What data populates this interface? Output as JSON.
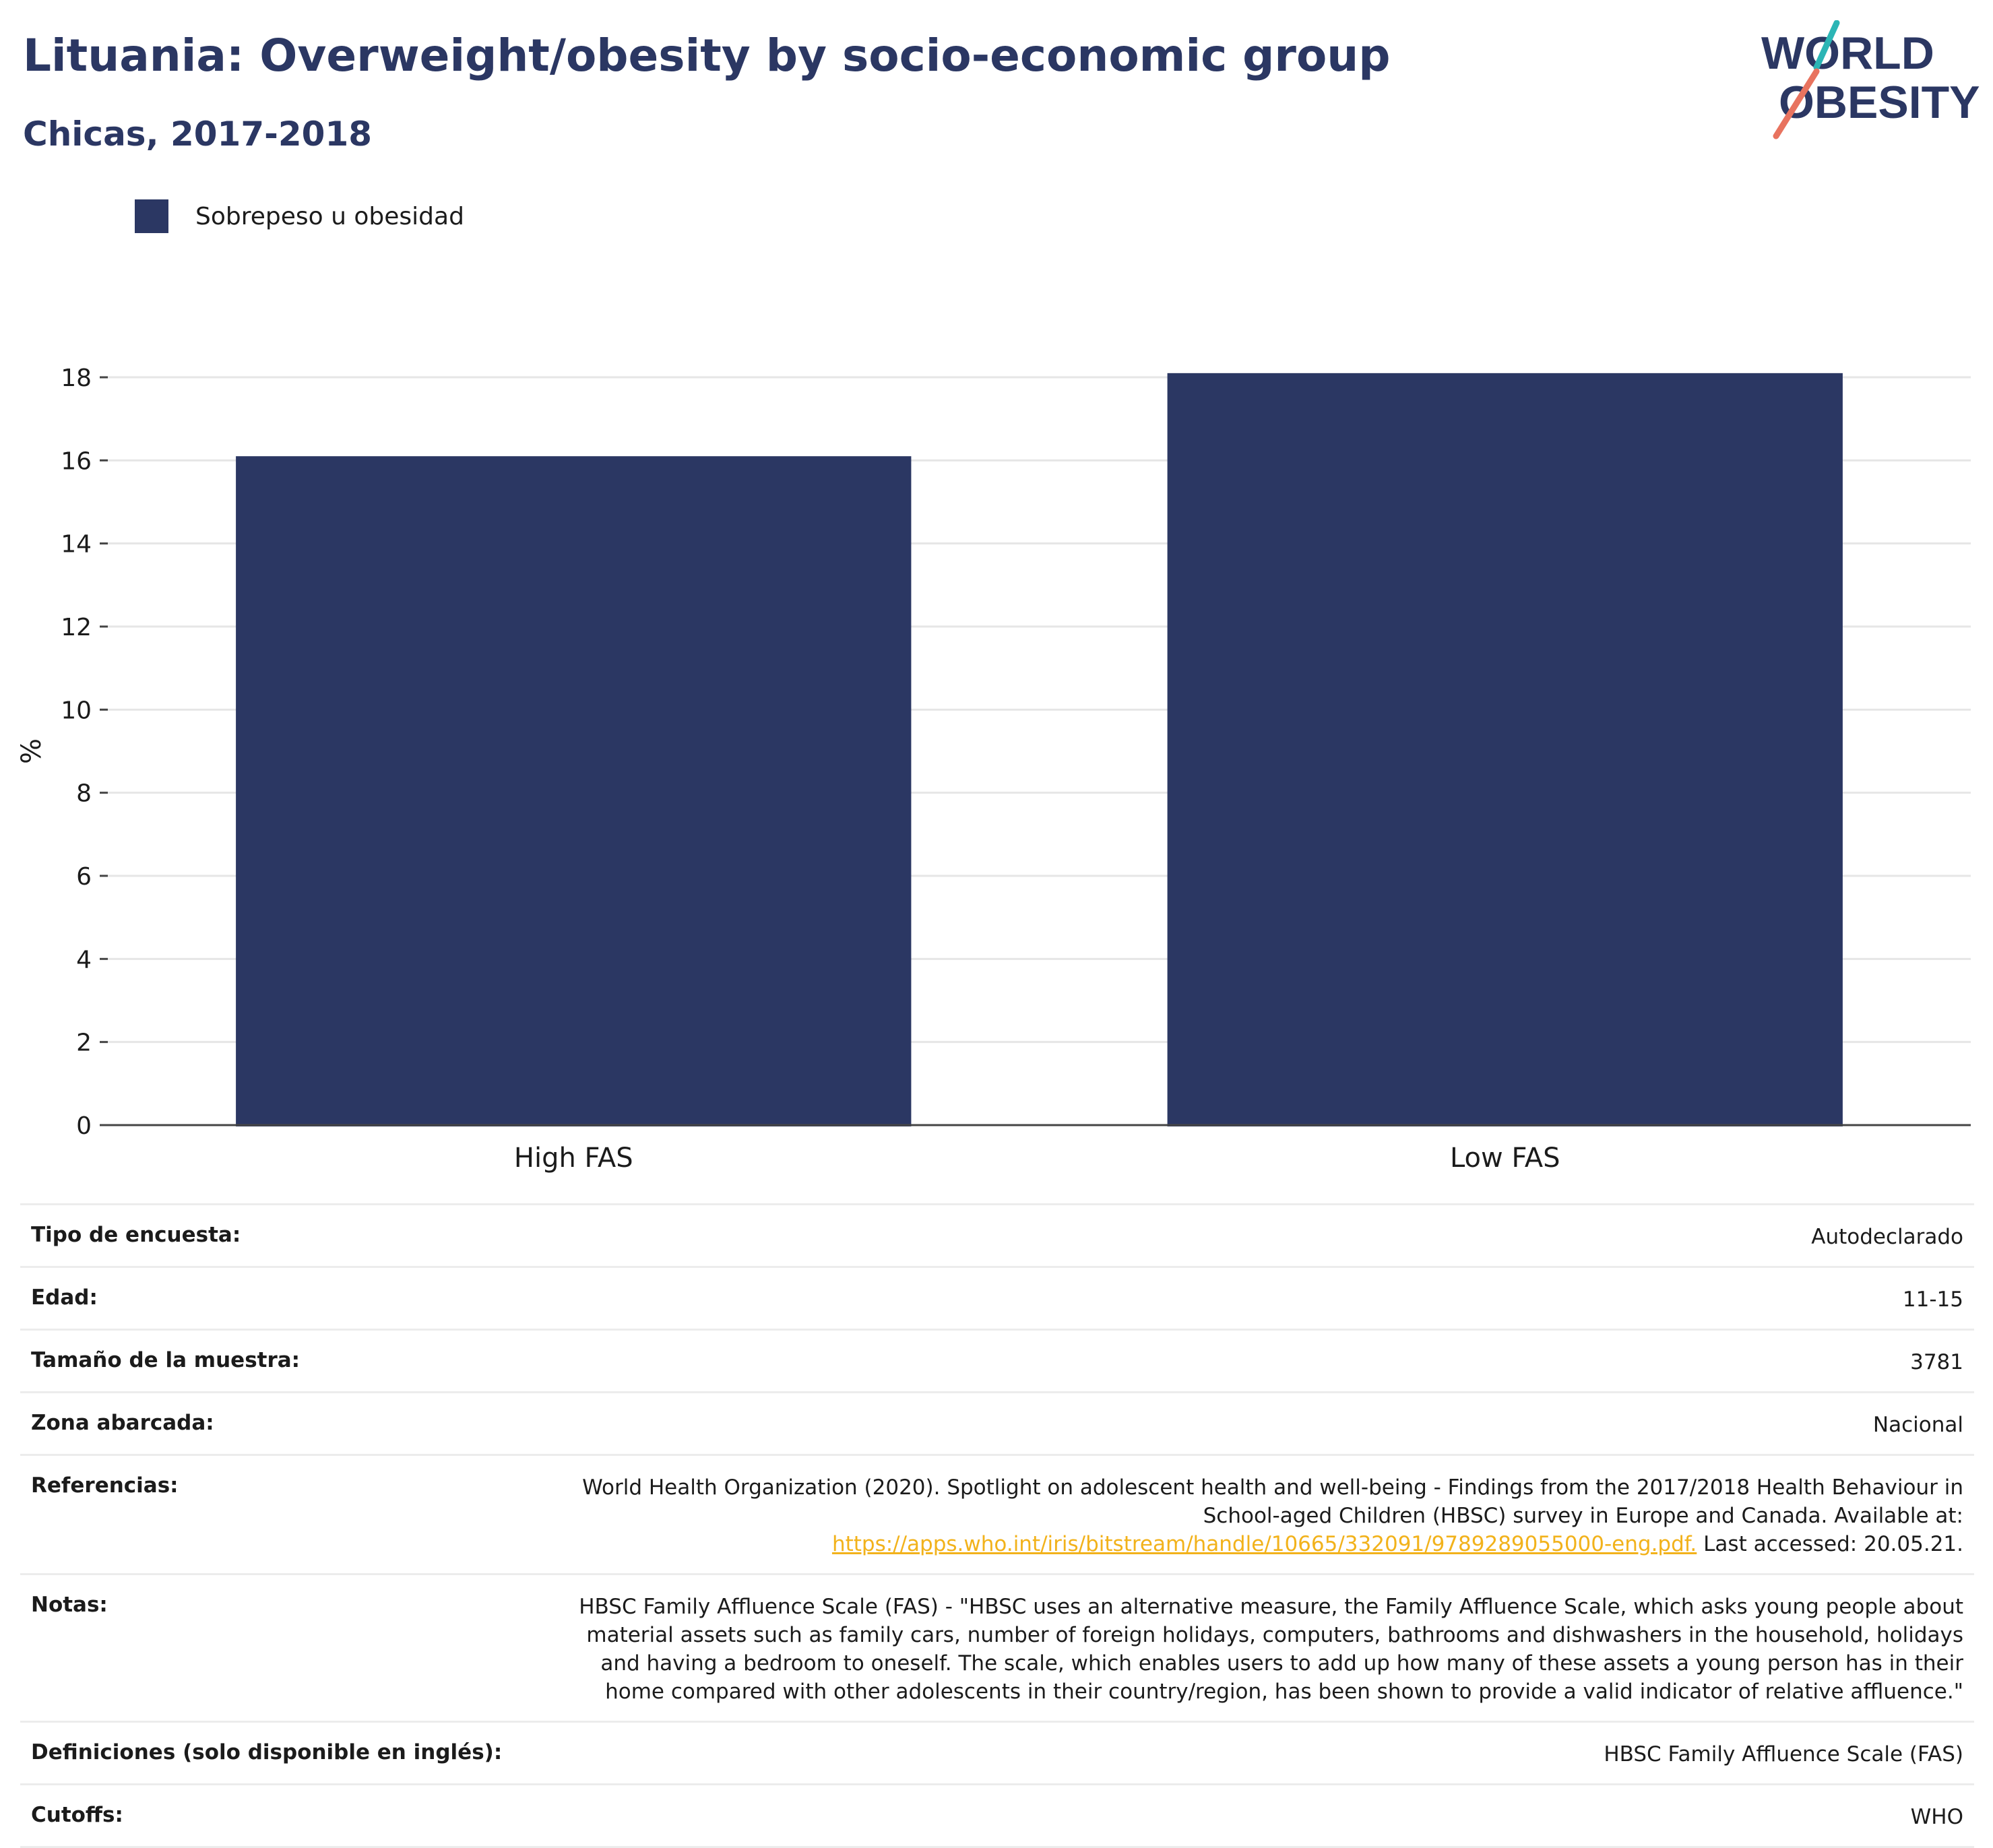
{
  "header": {
    "title": "Lituania: Overweight/obesity by socio-economic group",
    "subtitle": "Chicas, 2017-2018"
  },
  "logo": {
    "line1": "WORLD",
    "line2": "OBESITY",
    "colors": {
      "text": "#2b3763",
      "accent_teal": "#2bb5b5",
      "accent_coral": "#e8735f"
    }
  },
  "legend": {
    "label": "Sobrepeso u obesidad",
    "color": "#2b3763"
  },
  "chart_data": {
    "type": "bar",
    "categories": [
      "High FAS",
      "Low FAS"
    ],
    "series": [
      {
        "name": "Sobrepeso u obesidad",
        "values": [
          16.1,
          18.1
        ],
        "color": "#2b3763"
      }
    ],
    "ylabel": "%",
    "ylim": [
      0,
      18
    ],
    "yticks": [
      0,
      2,
      4,
      6,
      8,
      10,
      12,
      14,
      16,
      18
    ],
    "grid": true,
    "legend_position": "top-left"
  },
  "meta": {
    "survey_type": {
      "label": "Tipo de encuesta:",
      "value": "Autodeclarado"
    },
    "age": {
      "label": "Edad:",
      "value": "11-15"
    },
    "sample_size": {
      "label": "Tamaño de la muestra:",
      "value": "3781"
    },
    "area": {
      "label": "Zona abarcada:",
      "value": "Nacional"
    },
    "references": {
      "label": "Referencias:",
      "text": "World Health Organization (2020). Spotlight on adolescent health and well-being - Findings from the 2017/2018 Health Behaviour in School-aged Children (HBSC) survey in Europe and Canada. Available at:",
      "link": "https://apps.who.int/iris/bitstream/handle/10665/332091/9789289055000-eng.pdf.",
      "accessed": "Last accessed: 20.05.21."
    },
    "notes": {
      "label": "Notas:",
      "value": "HBSC Family Affluence Scale (FAS) - \"HBSC uses an alternative measure, the Family Affluence Scale, which asks young people about material assets such as family cars, number of foreign holidays, computers, bathrooms and dishwashers in the household, holidays and having a bedroom to oneself. The scale, which enables users to add up how many of these assets a young person has in their home compared with other adolescents in their country/region, has been shown to provide a valid indicator of relative affluence.\""
    },
    "definitions": {
      "label": "Definiciones (solo disponible en inglés):",
      "value": "HBSC Family Affluence Scale (FAS)"
    },
    "cutoffs": {
      "label": "Cutoffs:",
      "value": "WHO"
    }
  }
}
